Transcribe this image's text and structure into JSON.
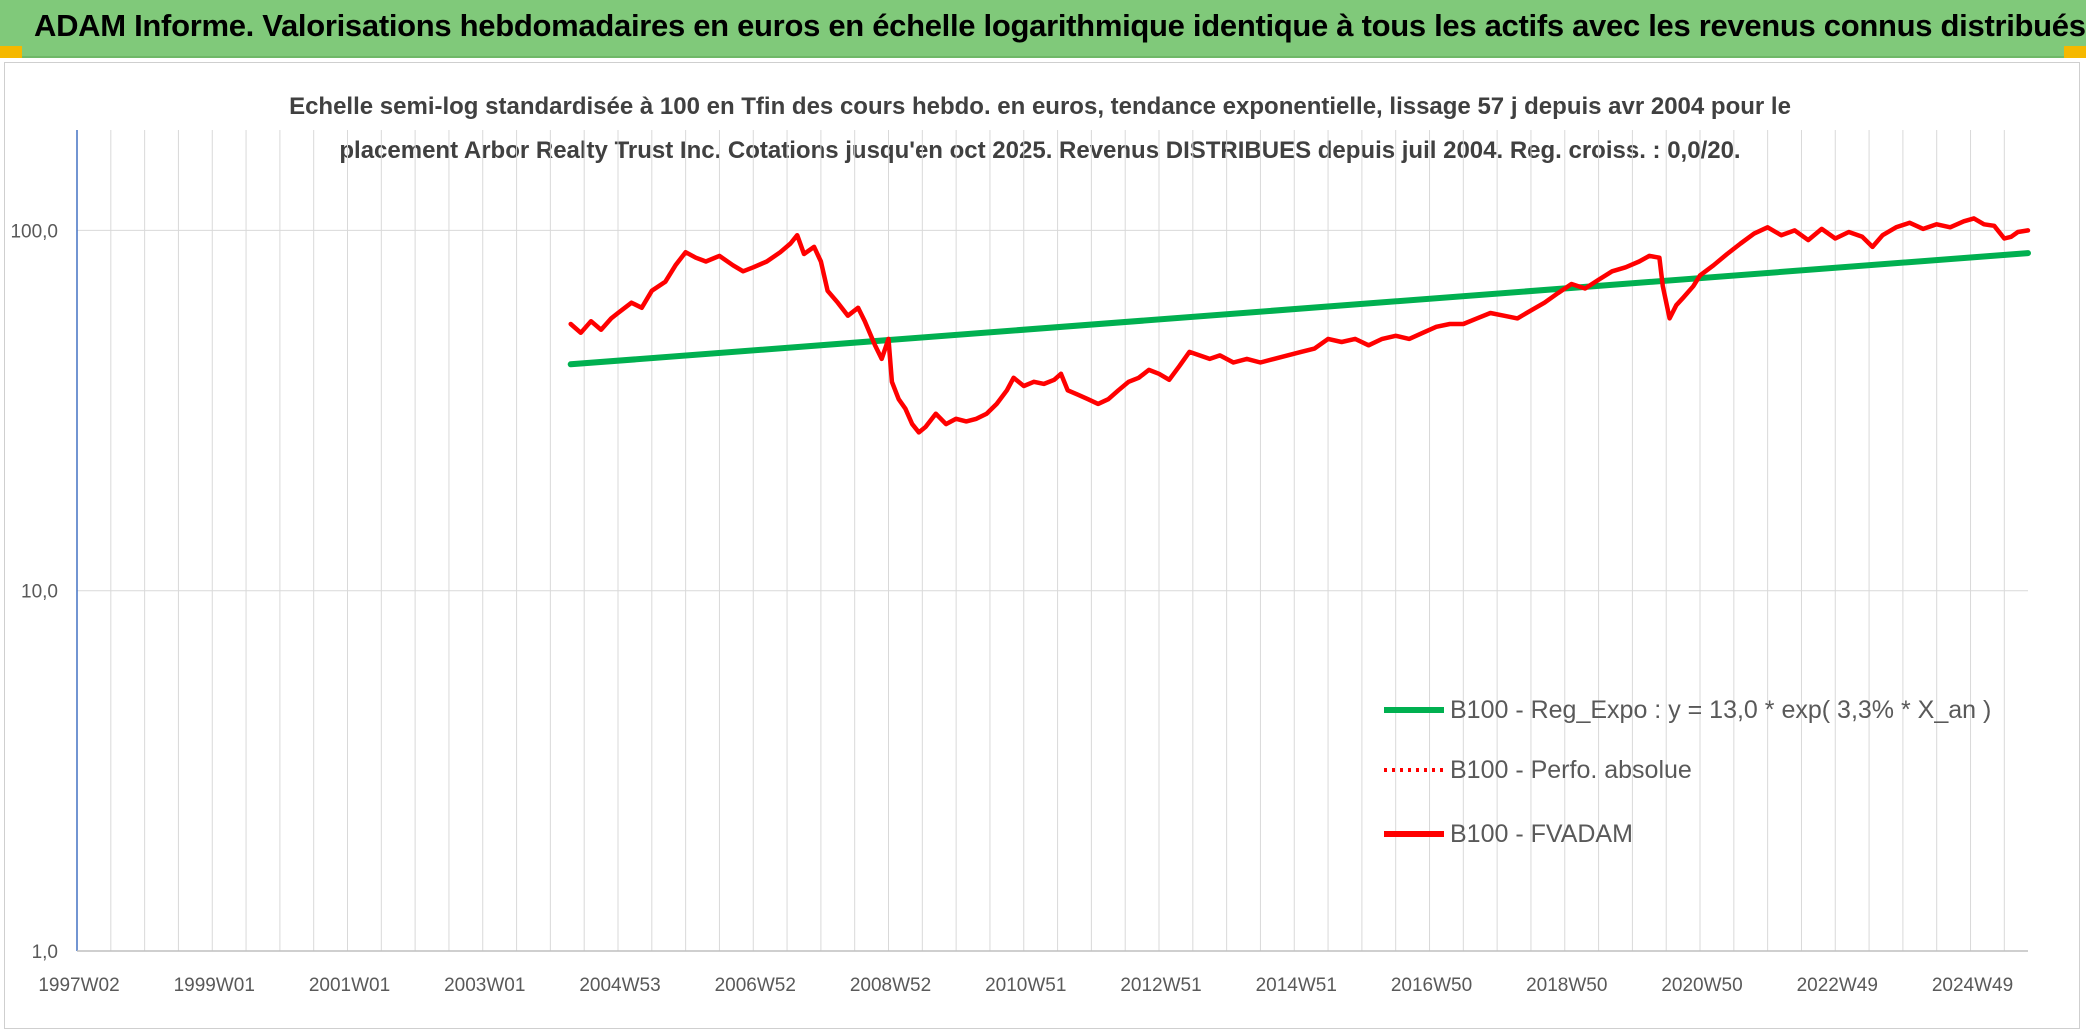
{
  "banner": {
    "title": "ADAM Informe. Valorisations hebdomadaires en euros en échelle logarithmique identique à tous les actifs avec les revenus connus distribués",
    "background": "#80c97a",
    "corner_color": "#f5b800"
  },
  "chart_data": {
    "type": "line",
    "title_line1": "Echelle semi-log standardisée à 100 en Tfin des cours hebdo. en euros, tendance exponentielle, lissage 57 j depuis avr 2004 pour le",
    "title_line2": "placement Arbor Realty Trust Inc. Cotations jusqu'en oct 2025. Revenus DISTRIBUES depuis juil 2004. Reg. croiss. : 0,0/20.",
    "y_scale": "log",
    "ylim": [
      1,
      190
    ],
    "y_ticks": [
      {
        "value": 1,
        "label": "1,0"
      },
      {
        "value": 10,
        "label": "10,0"
      },
      {
        "value": 100,
        "label": "100,0"
      }
    ],
    "xlim": [
      1997.0,
      2025.85
    ],
    "x_ticks": [
      {
        "t": 1997.0,
        "label": "1997W02"
      },
      {
        "t": 1999.0,
        "label": "1999W01"
      },
      {
        "t": 2001.0,
        "label": "2001W01"
      },
      {
        "t": 2003.0,
        "label": "2003W01"
      },
      {
        "t": 2005.0,
        "label": "2004W53"
      },
      {
        "t": 2007.0,
        "label": "2006W52"
      },
      {
        "t": 2009.0,
        "label": "2008W52"
      },
      {
        "t": 2011.0,
        "label": "2010W51"
      },
      {
        "t": 2013.0,
        "label": "2012W51"
      },
      {
        "t": 2015.0,
        "label": "2014W51"
      },
      {
        "t": 2017.0,
        "label": "2016W50"
      },
      {
        "t": 2019.0,
        "label": "2018W50"
      },
      {
        "t": 2021.0,
        "label": "2020W50"
      },
      {
        "t": 2023.0,
        "label": "2022W49"
      },
      {
        "t": 2025.0,
        "label": "2024W49"
      }
    ],
    "grid_step": 1,
    "legend_position": "bottom-right",
    "series": [
      {
        "name": "B100 - Reg_Expo : y = 13,0 * exp( 3,3% *  X_an )",
        "color": "#00b050",
        "style": "solid",
        "points": [
          [
            2004.3,
            42.5
          ],
          [
            2025.85,
            86.5
          ]
        ]
      },
      {
        "name": "B100 - Perfo. absolue",
        "color": "#ff0000",
        "style": "dotted",
        "points": []
      },
      {
        "name": "B100 - FVADAM",
        "color": "#ff0000",
        "style": "solid",
        "points": [
          [
            2004.3,
            55
          ],
          [
            2004.45,
            52
          ],
          [
            2004.6,
            56
          ],
          [
            2004.75,
            53
          ],
          [
            2004.9,
            57
          ],
          [
            2005.0,
            59
          ],
          [
            2005.2,
            63
          ],
          [
            2005.35,
            61
          ],
          [
            2005.5,
            68
          ],
          [
            2005.7,
            72
          ],
          [
            2005.85,
            80
          ],
          [
            2006.0,
            87
          ],
          [
            2006.15,
            84
          ],
          [
            2006.3,
            82
          ],
          [
            2006.5,
            85
          ],
          [
            2006.7,
            80
          ],
          [
            2006.85,
            77
          ],
          [
            2007.0,
            79
          ],
          [
            2007.2,
            82
          ],
          [
            2007.4,
            87
          ],
          [
            2007.55,
            92
          ],
          [
            2007.65,
            97
          ],
          [
            2007.75,
            86
          ],
          [
            2007.9,
            90
          ],
          [
            2008.0,
            82
          ],
          [
            2008.1,
            68
          ],
          [
            2008.25,
            63
          ],
          [
            2008.4,
            58
          ],
          [
            2008.55,
            61
          ],
          [
            2008.65,
            56
          ],
          [
            2008.8,
            48
          ],
          [
            2008.9,
            44
          ],
          [
            2009.0,
            50
          ],
          [
            2009.05,
            38
          ],
          [
            2009.15,
            34
          ],
          [
            2009.25,
            32
          ],
          [
            2009.35,
            29
          ],
          [
            2009.45,
            27.5
          ],
          [
            2009.55,
            28.5
          ],
          [
            2009.7,
            31
          ],
          [
            2009.85,
            29
          ],
          [
            2010.0,
            30
          ],
          [
            2010.15,
            29.5
          ],
          [
            2010.3,
            30
          ],
          [
            2010.45,
            31
          ],
          [
            2010.6,
            33
          ],
          [
            2010.75,
            36
          ],
          [
            2010.85,
            39
          ],
          [
            2011.0,
            37
          ],
          [
            2011.15,
            38
          ],
          [
            2011.3,
            37.5
          ],
          [
            2011.45,
            38.5
          ],
          [
            2011.55,
            40
          ],
          [
            2011.65,
            36
          ],
          [
            2011.8,
            35
          ],
          [
            2011.95,
            34
          ],
          [
            2012.1,
            33
          ],
          [
            2012.25,
            34
          ],
          [
            2012.4,
            36
          ],
          [
            2012.55,
            38
          ],
          [
            2012.7,
            39
          ],
          [
            2012.85,
            41
          ],
          [
            2013.0,
            40
          ],
          [
            2013.15,
            38.5
          ],
          [
            2013.3,
            42
          ],
          [
            2013.45,
            46
          ],
          [
            2013.6,
            45
          ],
          [
            2013.75,
            44
          ],
          [
            2013.9,
            45
          ],
          [
            2014.1,
            43
          ],
          [
            2014.3,
            44
          ],
          [
            2014.5,
            43
          ],
          [
            2014.7,
            44
          ],
          [
            2014.9,
            45
          ],
          [
            2015.1,
            46
          ],
          [
            2015.3,
            47
          ],
          [
            2015.5,
            50
          ],
          [
            2015.7,
            49
          ],
          [
            2015.9,
            50
          ],
          [
            2016.1,
            48
          ],
          [
            2016.3,
            50
          ],
          [
            2016.5,
            51
          ],
          [
            2016.7,
            50
          ],
          [
            2016.9,
            52
          ],
          [
            2017.1,
            54
          ],
          [
            2017.3,
            55
          ],
          [
            2017.5,
            55
          ],
          [
            2017.7,
            57
          ],
          [
            2017.9,
            59
          ],
          [
            2018.1,
            58
          ],
          [
            2018.3,
            57
          ],
          [
            2018.5,
            60
          ],
          [
            2018.7,
            63
          ],
          [
            2018.9,
            67
          ],
          [
            2019.1,
            71
          ],
          [
            2019.3,
            69
          ],
          [
            2019.5,
            73
          ],
          [
            2019.7,
            77
          ],
          [
            2019.9,
            79
          ],
          [
            2020.1,
            82
          ],
          [
            2020.25,
            85
          ],
          [
            2020.4,
            84
          ],
          [
            2020.45,
            70
          ],
          [
            2020.55,
            57
          ],
          [
            2020.65,
            62
          ],
          [
            2020.75,
            65
          ],
          [
            2020.9,
            70
          ],
          [
            2021.0,
            75
          ],
          [
            2021.2,
            80
          ],
          [
            2021.4,
            86
          ],
          [
            2021.6,
            92
          ],
          [
            2021.8,
            98
          ],
          [
            2022.0,
            102
          ],
          [
            2022.2,
            97
          ],
          [
            2022.4,
            100
          ],
          [
            2022.6,
            94
          ],
          [
            2022.8,
            101
          ],
          [
            2023.0,
            95
          ],
          [
            2023.2,
            99
          ],
          [
            2023.4,
            96
          ],
          [
            2023.55,
            90
          ],
          [
            2023.7,
            97
          ],
          [
            2023.9,
            102
          ],
          [
            2024.1,
            105
          ],
          [
            2024.3,
            101
          ],
          [
            2024.5,
            104
          ],
          [
            2024.7,
            102
          ],
          [
            2024.9,
            106
          ],
          [
            2025.05,
            108
          ],
          [
            2025.2,
            104
          ],
          [
            2025.35,
            103
          ],
          [
            2025.5,
            95
          ],
          [
            2025.6,
            96
          ],
          [
            2025.7,
            99
          ],
          [
            2025.85,
            100
          ]
        ]
      }
    ]
  }
}
